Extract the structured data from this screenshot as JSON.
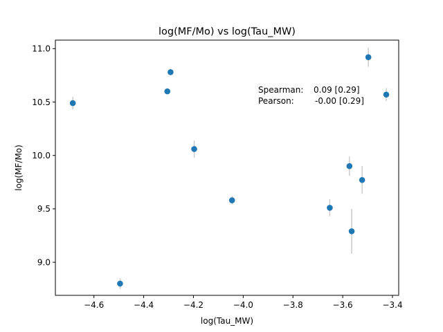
{
  "chart_data": {
    "type": "scatter",
    "title": "log(MF/Mo) vs log(Tau_MW)",
    "xlabel": "log(Tau_MW)",
    "ylabel": "log(MF/Mo)",
    "xlim": [
      -4.755,
      -3.375
    ],
    "ylim": [
      8.69,
      11.08
    ],
    "xticks": [
      -4.6,
      -4.4,
      -4.2,
      -4.0,
      -3.8,
      -3.6,
      -3.4
    ],
    "xtick_labels": [
      "−4.6",
      "−4.4",
      "−4.2",
      "−4.0",
      "−3.8",
      "−3.6",
      "−3.4"
    ],
    "yticks": [
      9.0,
      9.5,
      10.0,
      10.5,
      11.0
    ],
    "ytick_labels": [
      "9.0",
      "9.5",
      "10.0",
      "10.5",
      "11.0"
    ],
    "grid": false,
    "marker_color": "#1f77b4",
    "errorbar_color": "#c8c8c8",
    "points": [
      {
        "x": -4.685,
        "y": 10.49,
        "yerr": 0.06
      },
      {
        "x": -4.495,
        "y": 8.8,
        "yerr": 0.05
      },
      {
        "x": -4.305,
        "y": 10.6,
        "yerr": 0.02
      },
      {
        "x": -4.292,
        "y": 10.78,
        "yerr": 0.02
      },
      {
        "x": -4.197,
        "y": 10.06,
        "yerr": 0.08
      },
      {
        "x": -4.045,
        "y": 9.58,
        "yerr": 0.04
      },
      {
        "x": -3.652,
        "y": 9.51,
        "yerr": 0.08
      },
      {
        "x": -3.573,
        "y": 9.9,
        "yerr": 0.09
      },
      {
        "x": -3.564,
        "y": 9.29,
        "yerr": 0.21
      },
      {
        "x": -3.522,
        "y": 9.77,
        "yerr": 0.13
      },
      {
        "x": -3.497,
        "y": 10.92,
        "yerr": 0.09
      },
      {
        "x": -3.425,
        "y": 10.57,
        "yerr": 0.06
      }
    ],
    "annotations": [
      {
        "label": "Spearman:",
        "value": "0.09 [0.29]"
      },
      {
        "label": "Pearson:",
        "value": "-0.00 [0.29]"
      }
    ]
  }
}
